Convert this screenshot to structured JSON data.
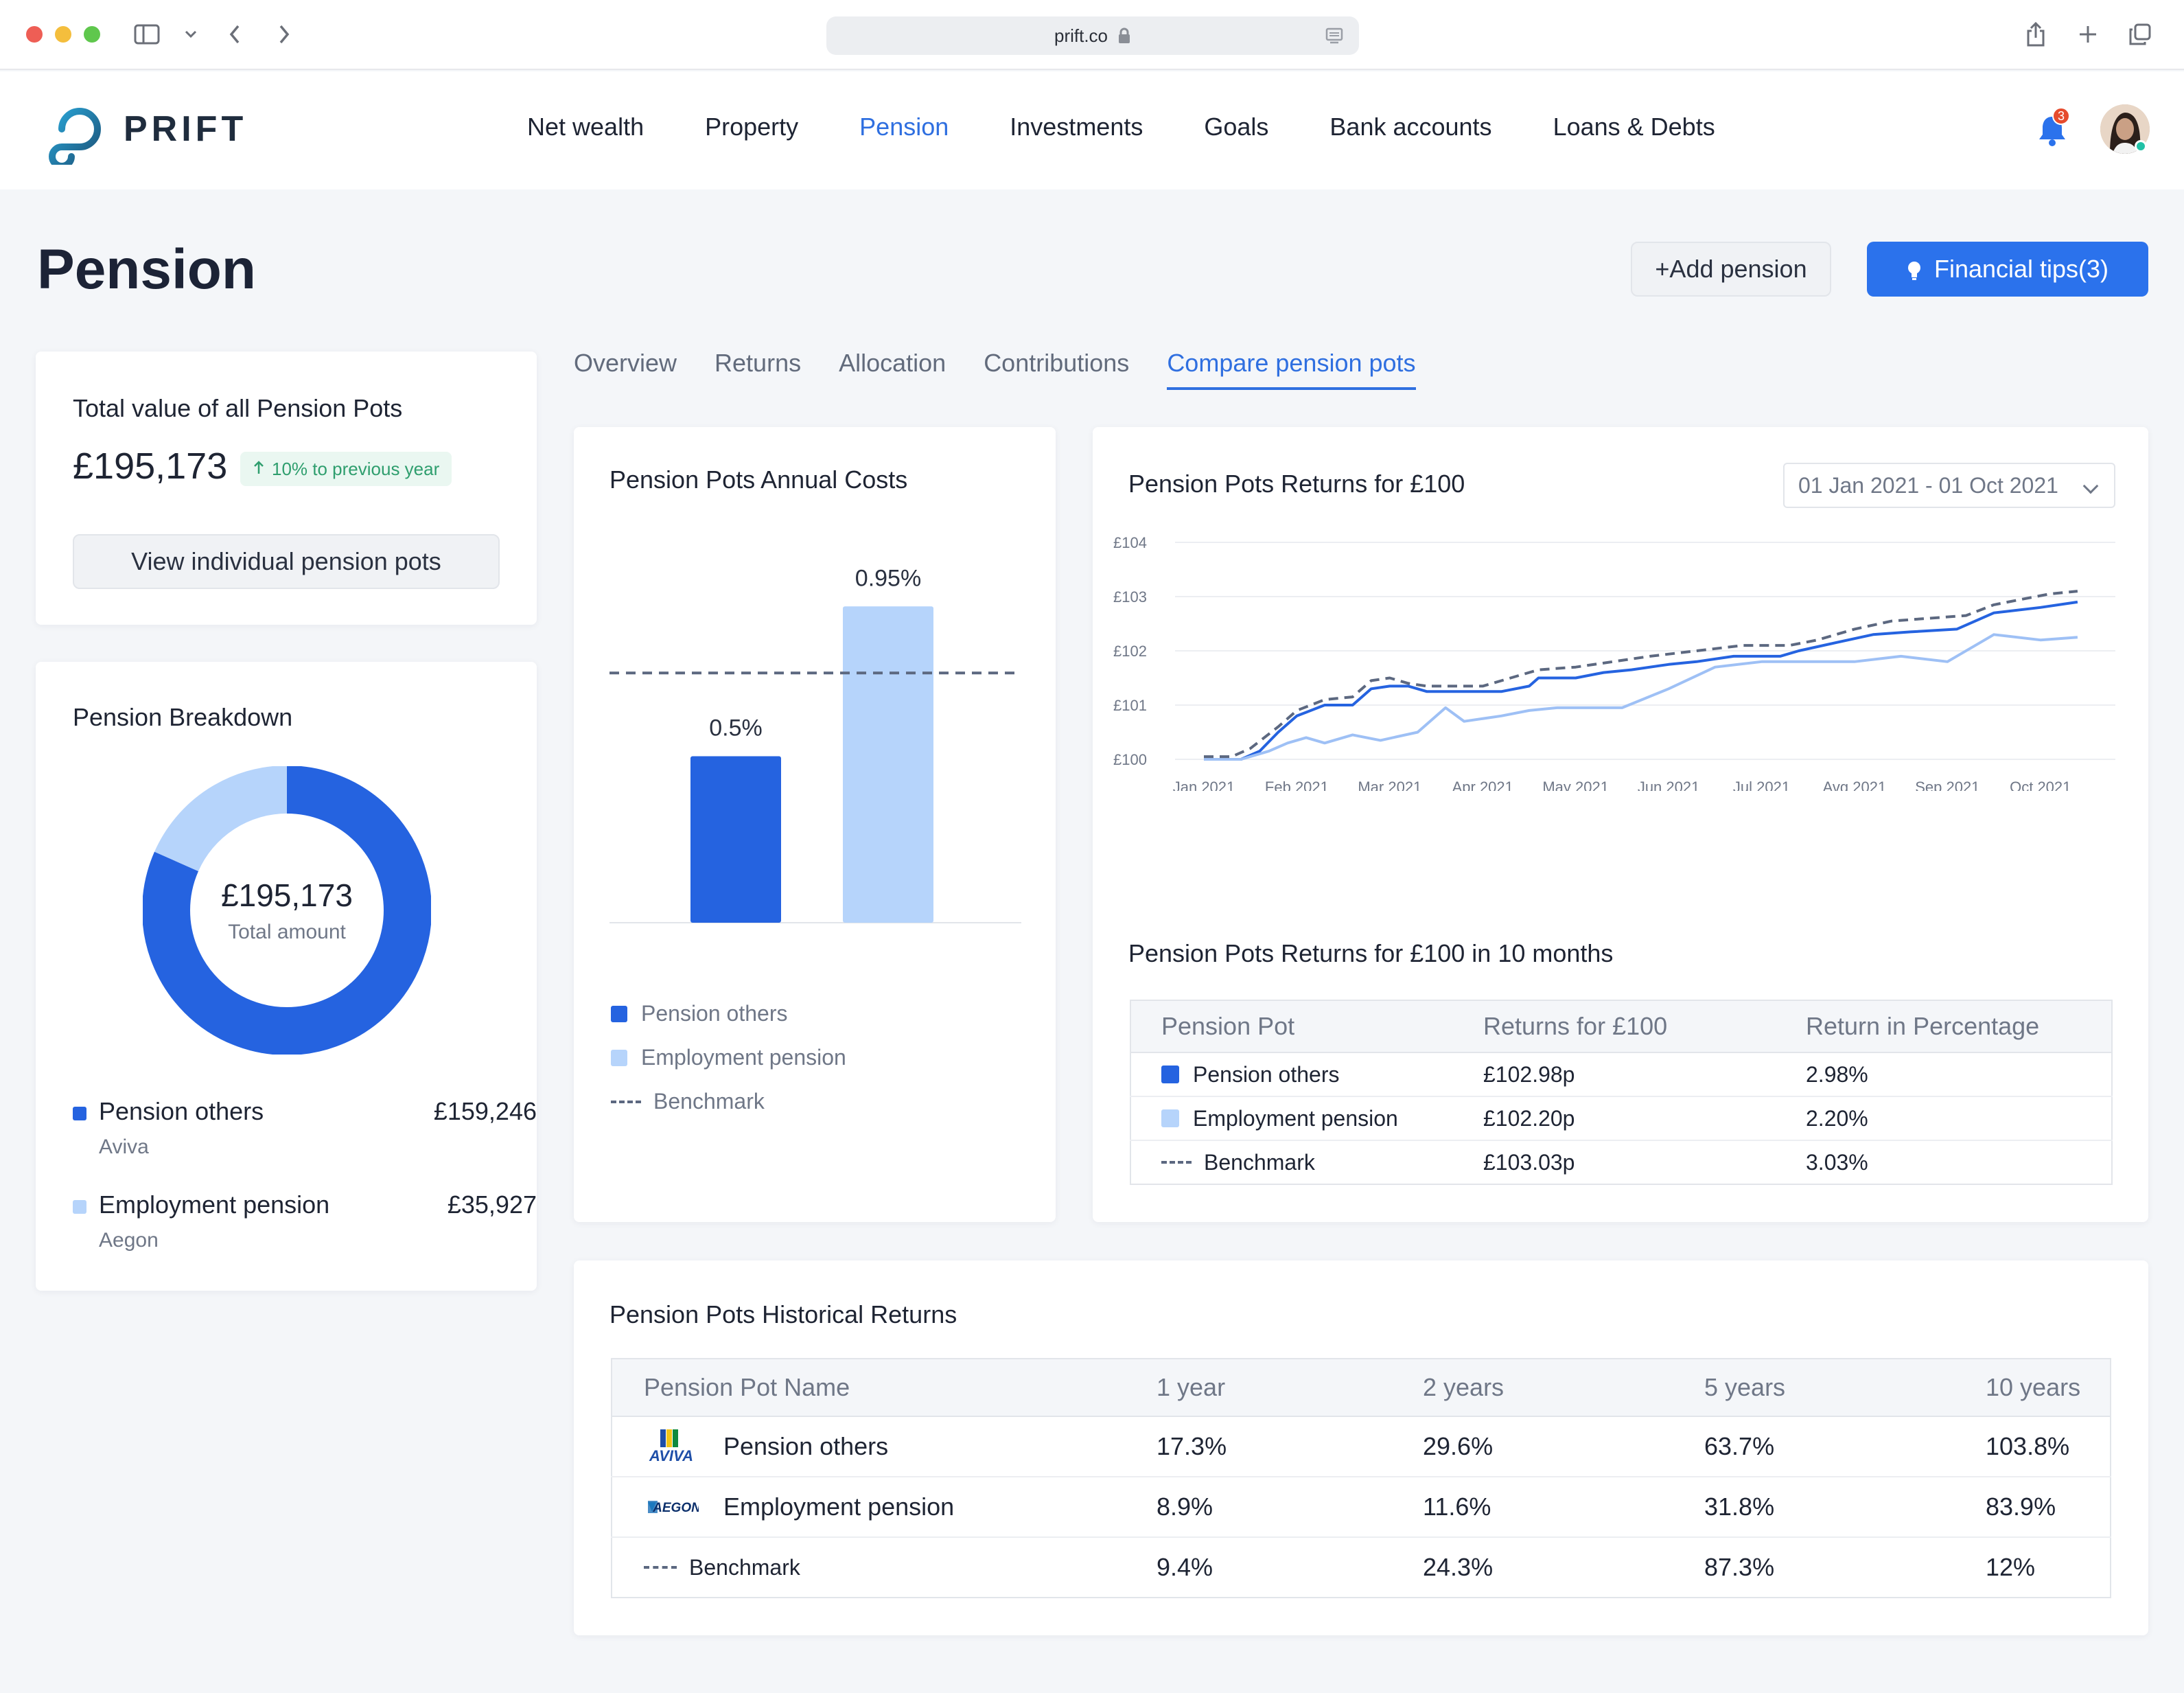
{
  "browser": {
    "url": "prift.co"
  },
  "app": {
    "logo_text": "PRIFT",
    "nav": [
      {
        "label": "Net wealth",
        "active": false
      },
      {
        "label": "Property",
        "active": false
      },
      {
        "label": "Pension",
        "active": true
      },
      {
        "label": "Investments",
        "active": false
      },
      {
        "label": "Goals",
        "active": false
      },
      {
        "label": "Bank accounts",
        "active": false
      },
      {
        "label": "Loans & Debts",
        "active": false
      }
    ],
    "notification_count": "3",
    "accent_color": "#2f6fe0"
  },
  "page": {
    "title": "Pension",
    "add_button": "+Add pension",
    "tips_button": "Financial tips(3)"
  },
  "total_card": {
    "label": "Total value of all Pension Pots",
    "value": "£195,173",
    "change": "10% to previous year",
    "view_button": "View individual pension pots"
  },
  "breakdown": {
    "title": "Pension Breakdown",
    "total_amount": "£195,173",
    "total_label": "Total amount",
    "items": [
      {
        "name": "Pension others",
        "provider": "Aviva",
        "amount": "£159,246",
        "share": 0.816,
        "color": "#2563e0"
      },
      {
        "name": "Employment pension",
        "provider": "Aegon",
        "amount": "£35,927",
        "share": 0.184,
        "color": "#b6d4fb"
      }
    ]
  },
  "tabs": [
    {
      "label": "Overview",
      "active": false
    },
    {
      "label": "Returns",
      "active": false
    },
    {
      "label": "Allocation",
      "active": false
    },
    {
      "label": "Contributions",
      "active": false
    },
    {
      "label": "Compare pension pots",
      "active": true
    }
  ],
  "annual_costs": {
    "title": "Pension Pots Annual Costs",
    "legend": [
      "Pension others",
      "Employment pension",
      "Benchmark"
    ]
  },
  "returns_chart": {
    "title": "Pension Pots Returns for £100",
    "date_range": "01 Jan 2021 - 01 Oct 2021"
  },
  "returns_table": {
    "title": "Pension Pots Returns for £100 in 10 months",
    "headers": [
      "Pension Pot",
      "Returns for £100",
      "Return in Percentage"
    ],
    "rows": [
      {
        "name": "Pension others",
        "returns": "£102.98p",
        "pct": "2.98%"
      },
      {
        "name": "Employment pension",
        "returns": "£102.20p",
        "pct": "2.20%"
      },
      {
        "name": "Benchmark",
        "returns": "£103.03p",
        "pct": "3.03%"
      }
    ]
  },
  "historical": {
    "title": "Pension Pots Historical Returns",
    "headers": [
      "Pension Pot Name",
      "1 year",
      "2 years",
      "5 years",
      "10 years"
    ],
    "rows": [
      {
        "name": "Pension others",
        "logo": "AVIVA",
        "y1": "17.3%",
        "y2": "29.6%",
        "y5": "63.7%",
        "y10": "103.8%"
      },
      {
        "name": "Employment pension",
        "logo": "AEGON",
        "y1": "8.9%",
        "y2": "11.6%",
        "y5": "31.8%",
        "y10": "83.9%"
      },
      {
        "name": "Benchmark",
        "logo": "",
        "y1": "9.4%",
        "y2": "24.3%",
        "y5": "87.3%",
        "y10": "12%"
      }
    ]
  },
  "chart_data": [
    {
      "type": "bar",
      "title": "Pension Pots Annual Costs",
      "categories": [
        "Pension others",
        "Employment pension"
      ],
      "values": [
        0.5,
        0.95
      ],
      "value_labels": [
        "0.5%",
        "0.95%"
      ],
      "benchmark": 0.75,
      "ylim": [
        0,
        1.2
      ],
      "colors": [
        "#2563e0",
        "#b6d4fb"
      ],
      "grid": false
    },
    {
      "type": "line",
      "title": "Pension Pots Returns for £100",
      "x": [
        "Jan 2021",
        "Feb 2021",
        "Mar 2021",
        "Apr 2021",
        "May 2021",
        "Jun 2021",
        "Jul 2021",
        "Avg 2021",
        "Sep 2021",
        "Oct 2021"
      ],
      "yticks": [
        "£100",
        "£101",
        "£102",
        "£103",
        "£104"
      ],
      "ylim": [
        100,
        104
      ],
      "grid": true,
      "series": [
        {
          "name": "Pension others",
          "color": "#2563e0",
          "style": "solid",
          "points": [
            [
              0,
              100.0
            ],
            [
              0.4,
              100.0
            ],
            [
              0.6,
              100.15
            ],
            [
              0.8,
              100.5
            ],
            [
              1.0,
              100.8
            ],
            [
              1.3,
              101.0
            ],
            [
              1.6,
              101.0
            ],
            [
              1.8,
              101.3
            ],
            [
              2.0,
              101.35
            ],
            [
              2.2,
              101.35
            ],
            [
              2.4,
              101.25
            ],
            [
              2.8,
              101.25
            ],
            [
              3.2,
              101.25
            ],
            [
              3.5,
              101.35
            ],
            [
              3.6,
              101.5
            ],
            [
              4.0,
              101.5
            ],
            [
              4.3,
              101.6
            ],
            [
              4.6,
              101.65
            ],
            [
              5.0,
              101.75
            ],
            [
              5.3,
              101.8
            ],
            [
              5.7,
              101.9
            ],
            [
              6.2,
              101.9
            ],
            [
              6.4,
              102.0
            ],
            [
              6.8,
              102.15
            ],
            [
              7.2,
              102.3
            ],
            [
              7.6,
              102.35
            ],
            [
              8.1,
              102.4
            ],
            [
              8.5,
              102.7
            ],
            [
              9.0,
              102.8
            ],
            [
              9.4,
              102.9
            ]
          ]
        },
        {
          "name": "Employment pension",
          "color": "#9ec0f5",
          "style": "solid",
          "points": [
            [
              0,
              100.0
            ],
            [
              0.4,
              100.0
            ],
            [
              0.7,
              100.15
            ],
            [
              0.9,
              100.3
            ],
            [
              1.1,
              100.4
            ],
            [
              1.3,
              100.3
            ],
            [
              1.6,
              100.45
            ],
            [
              1.9,
              100.35
            ],
            [
              2.3,
              100.5
            ],
            [
              2.6,
              100.95
            ],
            [
              2.8,
              100.7
            ],
            [
              3.2,
              100.8
            ],
            [
              3.5,
              100.9
            ],
            [
              3.8,
              100.95
            ],
            [
              4.2,
              100.95
            ],
            [
              4.5,
              100.95
            ],
            [
              5.0,
              101.3
            ],
            [
              5.5,
              101.7
            ],
            [
              6.0,
              101.8
            ],
            [
              6.5,
              101.8
            ],
            [
              7.0,
              101.8
            ],
            [
              7.5,
              101.9
            ],
            [
              8.0,
              101.8
            ],
            [
              8.5,
              102.3
            ],
            [
              9.0,
              102.2
            ],
            [
              9.4,
              102.25
            ]
          ]
        },
        {
          "name": "Benchmark",
          "color": "#5c6880",
          "style": "dashed",
          "points": [
            [
              0,
              100.05
            ],
            [
              0.3,
              100.05
            ],
            [
              0.5,
              100.2
            ],
            [
              0.8,
              100.6
            ],
            [
              1.0,
              100.9
            ],
            [
              1.3,
              101.1
            ],
            [
              1.6,
              101.15
            ],
            [
              1.8,
              101.45
            ],
            [
              2.0,
              101.5
            ],
            [
              2.2,
              101.4
            ],
            [
              2.4,
              101.35
            ],
            [
              3.0,
              101.35
            ],
            [
              3.3,
              101.5
            ],
            [
              3.6,
              101.65
            ],
            [
              4.0,
              101.7
            ],
            [
              4.4,
              101.8
            ],
            [
              4.8,
              101.9
            ],
            [
              5.3,
              102.0
            ],
            [
              5.8,
              102.1
            ],
            [
              6.3,
              102.1
            ],
            [
              6.6,
              102.2
            ],
            [
              7.0,
              102.4
            ],
            [
              7.4,
              102.55
            ],
            [
              7.8,
              102.6
            ],
            [
              8.2,
              102.65
            ],
            [
              8.5,
              102.85
            ],
            [
              8.8,
              102.95
            ],
            [
              9.1,
              103.05
            ],
            [
              9.4,
              103.1
            ]
          ]
        }
      ]
    }
  ]
}
